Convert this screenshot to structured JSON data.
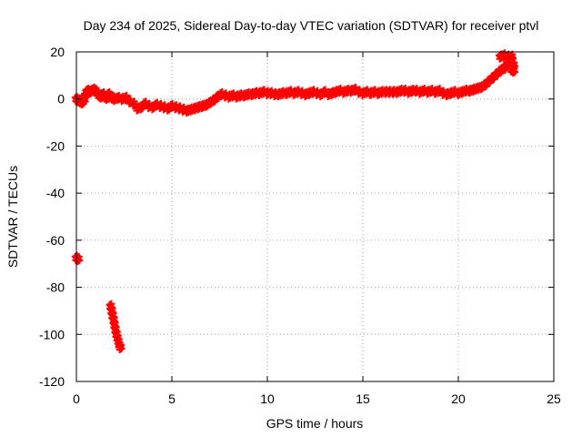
{
  "chart_data": {
    "type": "scatter",
    "title": "Day 234 of 2025, Sidereal Day-to-day VTEC variation (SDTVAR) for receiver ptvl",
    "xlabel": "GPS time / hours",
    "ylabel": "SDTVAR / TECUs",
    "xlim": [
      0,
      25
    ],
    "ylim": [
      -120,
      20
    ],
    "xticks": [
      0,
      5,
      10,
      15,
      20,
      25
    ],
    "yticks": [
      -120,
      -100,
      -80,
      -60,
      -40,
      -20,
      0,
      20
    ],
    "xtick_labels": [
      "0",
      "5",
      "10",
      "15",
      "20",
      "25"
    ],
    "ytick_labels": [
      "-120",
      "-100",
      "-80",
      "-60",
      "-40",
      "-20",
      "0",
      "20"
    ],
    "grid": true,
    "legend": "none",
    "marker_color": "#ff0000",
    "series": [
      {
        "values": [
          [
            0.0,
            0.0
          ],
          [
            0.1,
            -0.5
          ],
          [
            0.2,
            -1.0
          ],
          [
            0.3,
            -1.5
          ],
          [
            0.35,
            0.5
          ],
          [
            0.4,
            -0.5
          ],
          [
            0.5,
            1.5
          ],
          [
            0.55,
            3.0
          ],
          [
            0.6,
            3.5
          ],
          [
            0.7,
            3.0
          ],
          [
            0.8,
            3.5
          ],
          [
            0.9,
            4.0
          ],
          [
            1.0,
            3.5
          ],
          [
            1.1,
            2.5
          ],
          [
            1.2,
            1.5
          ],
          [
            1.3,
            1.0
          ],
          [
            1.4,
            2.0
          ],
          [
            1.5,
            1.0
          ],
          [
            1.6,
            0.5
          ],
          [
            1.7,
            2.0
          ],
          [
            1.8,
            1.0
          ],
          [
            1.9,
            0.5
          ],
          [
            2.0,
            0.0
          ],
          [
            2.2,
            0.5
          ],
          [
            2.4,
            0.0
          ],
          [
            2.6,
            0.5
          ],
          [
            2.8,
            -1.0
          ],
          [
            3.0,
            -2.0
          ],
          [
            3.2,
            -4.0
          ],
          [
            3.4,
            -3.5
          ],
          [
            3.6,
            -2.0
          ],
          [
            3.8,
            -3.0
          ],
          [
            4.0,
            -3.5
          ],
          [
            4.2,
            -2.5
          ],
          [
            4.4,
            -3.0
          ],
          [
            4.6,
            -3.5
          ],
          [
            4.8,
            -4.0
          ],
          [
            5.0,
            -3.0
          ],
          [
            5.2,
            -3.5
          ],
          [
            5.4,
            -4.0
          ],
          [
            5.6,
            -4.5
          ],
          [
            5.8,
            -5.0
          ],
          [
            6.0,
            -4.5
          ],
          [
            6.2,
            -4.0
          ],
          [
            6.4,
            -3.5
          ],
          [
            6.6,
            -3.0
          ],
          [
            6.8,
            -2.5
          ],
          [
            7.0,
            -1.5
          ],
          [
            7.2,
            -0.5
          ],
          [
            7.4,
            1.0
          ],
          [
            7.6,
            2.0
          ],
          [
            7.8,
            1.5
          ],
          [
            8.0,
            1.0
          ],
          [
            8.2,
            1.5
          ],
          [
            8.4,
            1.0
          ],
          [
            8.6,
            1.5
          ],
          [
            8.8,
            1.5
          ],
          [
            9.0,
            2.0
          ],
          [
            9.2,
            2.0
          ],
          [
            9.4,
            2.5
          ],
          [
            9.6,
            2.5
          ],
          [
            9.8,
            3.0
          ],
          [
            10.0,
            2.5
          ],
          [
            10.2,
            2.5
          ],
          [
            10.4,
            2.0
          ],
          [
            10.6,
            2.0
          ],
          [
            10.8,
            2.5
          ],
          [
            11.0,
            2.5
          ],
          [
            11.2,
            3.0
          ],
          [
            11.4,
            2.5
          ],
          [
            11.6,
            3.0
          ],
          [
            11.8,
            2.5
          ],
          [
            12.0,
            2.0
          ],
          [
            12.2,
            2.5
          ],
          [
            12.4,
            3.0
          ],
          [
            12.6,
            2.5
          ],
          [
            12.8,
            2.0
          ],
          [
            13.0,
            3.0
          ],
          [
            13.2,
            2.0
          ],
          [
            13.4,
            2.5
          ],
          [
            13.6,
            3.0
          ],
          [
            13.8,
            3.5
          ],
          [
            14.0,
            3.0
          ],
          [
            14.2,
            3.5
          ],
          [
            14.4,
            3.5
          ],
          [
            14.6,
            4.0
          ],
          [
            14.8,
            3.0
          ],
          [
            15.0,
            2.5
          ],
          [
            15.2,
            3.0
          ],
          [
            15.4,
            2.5
          ],
          [
            15.6,
            3.0
          ],
          [
            15.8,
            2.5
          ],
          [
            16.0,
            3.0
          ],
          [
            16.2,
            3.0
          ],
          [
            16.4,
            3.0
          ],
          [
            16.6,
            3.0
          ],
          [
            16.8,
            3.0
          ],
          [
            17.0,
            3.5
          ],
          [
            17.2,
            3.5
          ],
          [
            17.4,
            3.0
          ],
          [
            17.6,
            3.5
          ],
          [
            17.8,
            3.5
          ],
          [
            18.0,
            3.0
          ],
          [
            18.2,
            3.5
          ],
          [
            18.4,
            3.0
          ],
          [
            18.6,
            3.5
          ],
          [
            18.8,
            3.0
          ],
          [
            19.0,
            3.5
          ],
          [
            19.2,
            2.5
          ],
          [
            19.4,
            2.0
          ],
          [
            19.6,
            2.5
          ],
          [
            19.8,
            3.0
          ],
          [
            20.0,
            2.5
          ],
          [
            20.2,
            3.0
          ],
          [
            20.4,
            3.5
          ],
          [
            20.6,
            3.5
          ],
          [
            20.8,
            4.0
          ],
          [
            21.0,
            4.5
          ],
          [
            21.2,
            5.0
          ],
          [
            21.4,
            6.0
          ],
          [
            21.6,
            7.5
          ],
          [
            21.8,
            9.0
          ],
          [
            22.0,
            10.5
          ],
          [
            22.2,
            12.0
          ],
          [
            22.4,
            13.0
          ],
          [
            22.5,
            14.0
          ],
          [
            22.6,
            15.0
          ],
          [
            22.7,
            17.0
          ],
          [
            22.8,
            18.0
          ],
          [
            22.2,
            18.0
          ],
          [
            22.4,
            18.5
          ],
          [
            22.6,
            18.0
          ],
          [
            22.8,
            16.0
          ],
          [
            22.9,
            14.5
          ],
          [
            22.8,
            12.5
          ],
          [
            22.9,
            12.0
          ],
          [
            0.0,
            -67.5
          ],
          [
            0.1,
            -68.0
          ],
          [
            1.8,
            -88.0
          ],
          [
            1.85,
            -90.0
          ],
          [
            1.9,
            -92.0
          ],
          [
            1.95,
            -94.0
          ],
          [
            2.0,
            -96.0
          ],
          [
            2.05,
            -98.0
          ],
          [
            2.1,
            -100.0
          ],
          [
            2.15,
            -101.5
          ],
          [
            2.2,
            -103.0
          ],
          [
            2.25,
            -104.5
          ],
          [
            2.3,
            -105.5
          ]
        ]
      }
    ]
  }
}
